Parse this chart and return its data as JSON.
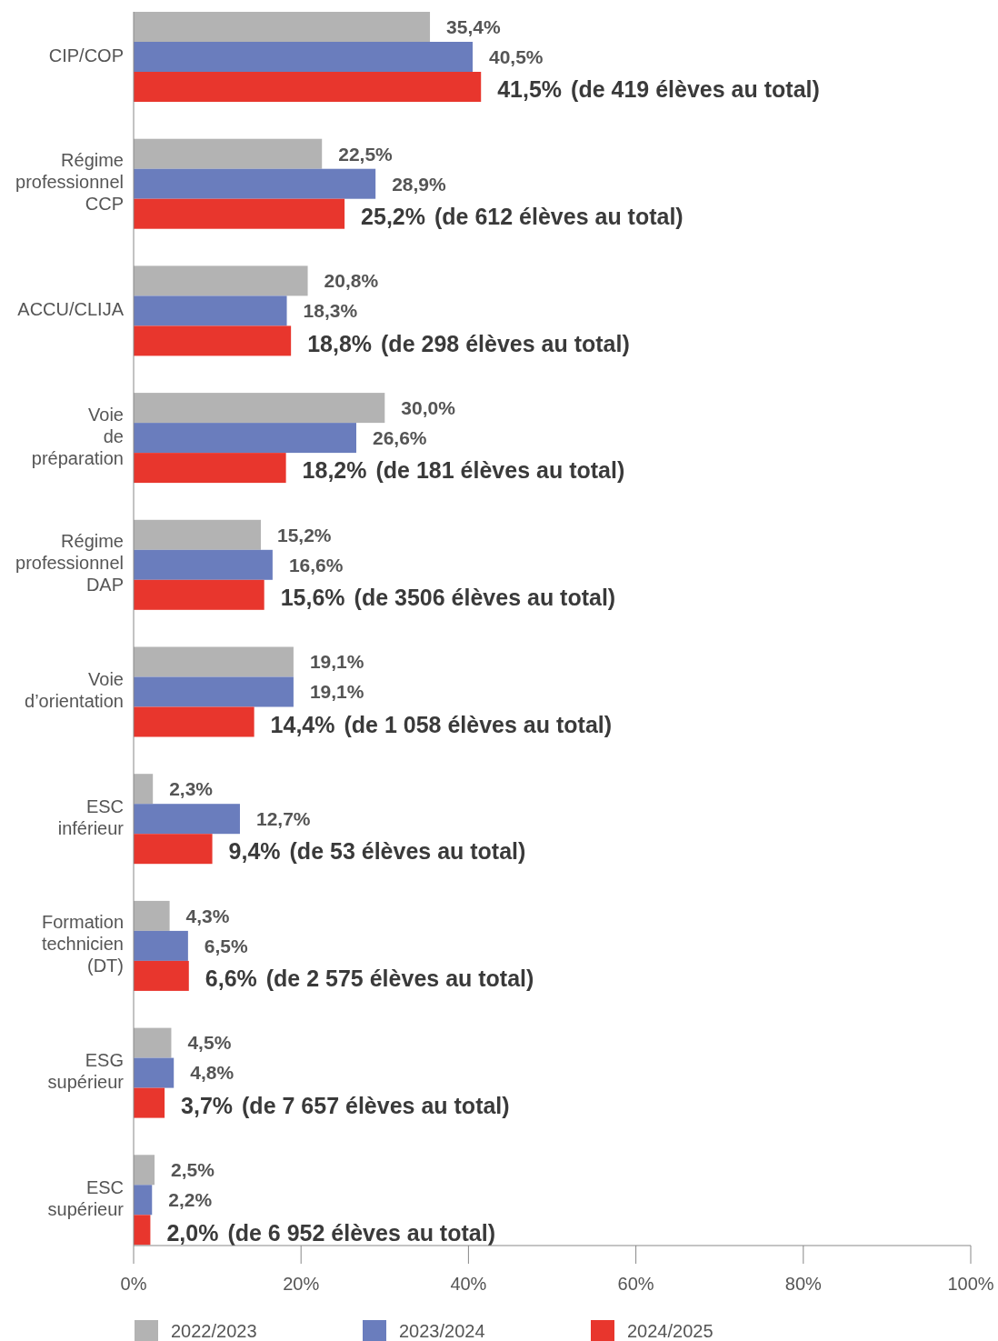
{
  "chart_data": {
    "type": "bar",
    "orientation": "horizontal",
    "categories": [
      "CIP/COP",
      "Régime professionnel CCP",
      "ACCU/CLIJA",
      "Voie de préparation",
      "Régime professionnel DAP",
      "Voie d’orientation",
      "ESC inférieur",
      "Formation technicien (DT)",
      "ESG supérieur",
      "ESC supérieur"
    ],
    "series": [
      {
        "name": "2022/2023",
        "color": "#b3b3b3",
        "values": [
          35.4,
          22.5,
          20.8,
          30.0,
          15.2,
          19.1,
          2.3,
          4.3,
          4.5,
          2.5
        ],
        "value_labels": [
          "35,4%",
          "22,5%",
          "20,8%",
          "30,0%",
          "15,2%",
          "19,1%",
          "2,3%",
          "4,3%",
          "4,5%",
          "2,5%"
        ]
      },
      {
        "name": "2023/2024",
        "color": "#6a7dbd",
        "values": [
          40.5,
          28.9,
          18.3,
          26.6,
          16.6,
          19.1,
          12.7,
          6.5,
          4.8,
          2.2
        ],
        "value_labels": [
          "40,5%",
          "28,9%",
          "18,3%",
          "26,6%",
          "16,6%",
          "19,1%",
          "12,7%",
          "6,5%",
          "4,8%",
          "2,2%"
        ]
      },
      {
        "name": "2024/2025",
        "color": "#e8362d",
        "values": [
          41.5,
          25.2,
          18.8,
          18.2,
          15.6,
          14.4,
          9.4,
          6.6,
          3.7,
          2.0
        ],
        "value_labels": [
          "41,5% (de 419 élèves au total)",
          "25,2% (de 612 élèves au total)",
          "18,8% (de 298 élèves au total)",
          "18,2% (de 181 élèves au total)",
          "15,6% (de 3506 élèves au total)",
          "14,4% (de 1 058 élèves au total)",
          "9,4% (de 53 élèves au total)",
          "6,6% (de 2 575 élèves au total)",
          "3,7% (de 7 657 élèves au total)",
          "2,0% (de 6 952 élèves au total)"
        ]
      }
    ],
    "xlim": [
      0,
      100
    ],
    "xticks": [
      {
        "value": 0,
        "label": "0%"
      },
      {
        "value": 20,
        "label": "20%"
      },
      {
        "value": 40,
        "label": "40%"
      },
      {
        "value": 60,
        "label": "60%"
      },
      {
        "value": 80,
        "label": "80%"
      },
      {
        "value": 100,
        "label": "100%"
      }
    ],
    "grid": false,
    "legend": "bottom"
  }
}
